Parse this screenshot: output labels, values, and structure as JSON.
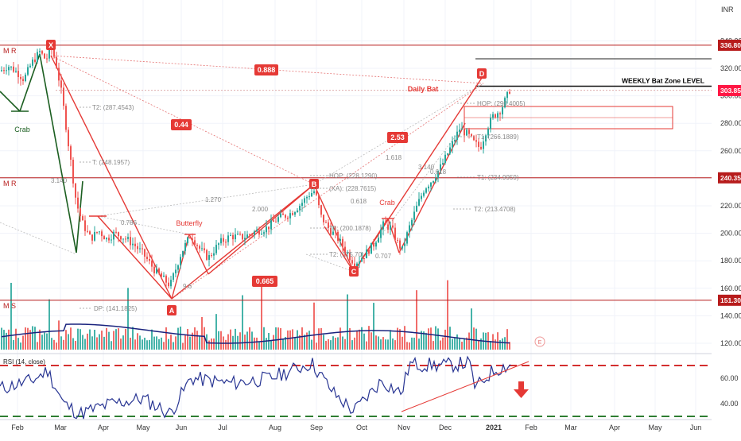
{
  "header": {
    "currency": "INR"
  },
  "chart_data": {
    "type": "line",
    "y_axis": {
      "ticks": [
        120,
        140,
        160,
        180,
        200,
        220,
        240,
        260,
        280,
        300,
        320,
        340
      ],
      "range": [
        112,
        345
      ],
      "tick_labels": [
        "120.00",
        "140.00",
        "160.00",
        "180.00",
        "200.00",
        "220.00",
        "240.00",
        "260.00",
        "280.00",
        "300.00",
        "320.00",
        "340.00"
      ]
    },
    "x_axis": {
      "labels": [
        "Feb",
        "Mar",
        "Apr",
        "May",
        "Jun",
        "Jul",
        "Aug",
        "Sep",
        "Oct",
        "Nov",
        "Dec",
        "2021",
        "Feb",
        "Mar",
        "Apr",
        "May",
        "Jun"
      ]
    },
    "price_labels": [
      {
        "value": 336.8,
        "text": "336.80",
        "color": "#b71c1c"
      },
      {
        "value": 303.85,
        "text": "303.85",
        "color": "#ff1744"
      },
      {
        "value": 240.35,
        "text": "240.35",
        "color": "#b71c1c"
      },
      {
        "value": 151.3,
        "text": "151.30",
        "color": "#b71c1c"
      }
    ],
    "horizontal_lines": [
      {
        "value": 336.8,
        "label": "M R"
      },
      {
        "value": 240.35,
        "label": "M R"
      },
      {
        "value": 151.3,
        "label": "M S"
      }
    ],
    "weekly_zone": {
      "value": 307,
      "label": "WEEKLY Bat Zone LEVEL"
    },
    "pattern_points": [
      {
        "label": "X",
        "value": 336.8
      },
      {
        "label": "A",
        "value": 151.3
      },
      {
        "label": "B",
        "value": 232
      },
      {
        "label": "C",
        "value": 174
      },
      {
        "label": "D",
        "value": 311
      }
    ],
    "ratio_boxes": [
      "0.888",
      "0.44",
      "2.53",
      "0.665"
    ],
    "pattern_names": [
      "Crab",
      "Butterfly",
      "Crab",
      "Daily Bat"
    ],
    "fib_labels": [
      "1.270",
      "2.000",
      "1.618",
      "0.786",
      "0.618",
      "0.707",
      "3.140",
      "0.618",
      "3.140",
      "9.6"
    ],
    "target_labels": [
      "T2: (287.4543)",
      "T: (248.1957)",
      "HOP: (228.1290)",
      "(XA): (228.7615)",
      "T1: (200.1878)",
      "T2: (175.70)",
      "HOP: (290.4005)",
      "T1: (266.1889)",
      "T1: (234.9959)",
      "T2: (213.4708)",
      "DP: (141.1825)"
    ],
    "rsi": {
      "title": "RSI (14, close)",
      "ticks": [
        40,
        60
      ],
      "tick_labels": [
        "40.00",
        "60.00"
      ],
      "upper": 70,
      "lower": 30
    },
    "colors": {
      "up": "#26a69a",
      "down": "#ef5350",
      "pattern": "#e53935",
      "harmonic_green": "#1b5e20",
      "rsi_line": "#283593",
      "volume_ma": "#1a237e",
      "level": "#b71c1c"
    }
  }
}
